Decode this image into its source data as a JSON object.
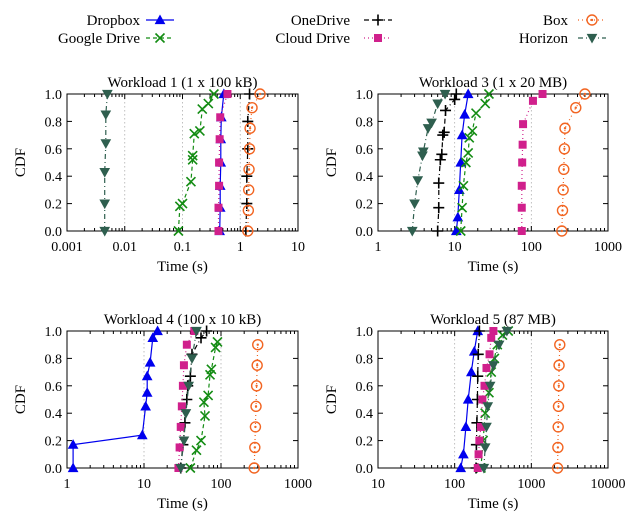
{
  "legend": [
    {
      "name": "Dropbox",
      "color": "#0000ee",
      "marker": "triangle-up",
      "dash": ""
    },
    {
      "name": "Google Drive",
      "color": "#138c13",
      "marker": "x",
      "dash": "4 3"
    },
    {
      "name": "OneDrive",
      "color": "#000000",
      "marker": "plus",
      "dash": "5 3 1 3"
    },
    {
      "name": "Cloud Drive",
      "color": "#d0208c",
      "marker": "square",
      "dash": "1 3"
    },
    {
      "name": "Box",
      "color": "#f26522",
      "marker": "circle",
      "dash": "1 3"
    },
    {
      "name": "Horizon",
      "color": "#2f5f4f",
      "marker": "triangle-down",
      "dash": "5 3 1 3"
    }
  ],
  "chart_data": [
    {
      "type": "line",
      "title": "Workload 1 (1 x 100 kB)",
      "xlabel": "Time (s)",
      "ylabel": "CDF",
      "xscale": "log",
      "xlim": [
        0.001,
        10
      ],
      "ylim": [
        0,
        1
      ],
      "xticks": [
        0.001,
        0.01,
        0.1,
        1,
        10
      ],
      "xtick_labels": [
        "0.001",
        "0.01",
        "0.1",
        "1",
        "10"
      ],
      "yticks": [
        0,
        0.2,
        0.4,
        0.6,
        0.8,
        1.0
      ],
      "ytick_labels": [
        "0.0",
        "0.2",
        "0.4",
        "0.6",
        "0.8",
        "1.0"
      ],
      "grid": true,
      "series": [
        {
          "name": "Dropbox",
          "points": [
            [
              0.44,
              0
            ],
            [
              0.45,
              0.17
            ],
            [
              0.45,
              0.33
            ],
            [
              0.46,
              0.5
            ],
            [
              0.46,
              0.67
            ],
            [
              0.47,
              0.83
            ],
            [
              0.52,
              1.0
            ]
          ]
        },
        {
          "name": "Google Drive",
          "points": [
            [
              0.085,
              0
            ],
            [
              0.09,
              0.18
            ],
            [
              0.1,
              0.2
            ],
            [
              0.14,
              0.36
            ],
            [
              0.15,
              0.52
            ],
            [
              0.15,
              0.55
            ],
            [
              0.16,
              0.71
            ],
            [
              0.2,
              0.73
            ],
            [
              0.22,
              0.89
            ],
            [
              0.28,
              0.93
            ],
            [
              0.35,
              1.0
            ]
          ]
        },
        {
          "name": "OneDrive",
          "points": [
            [
              1.25,
              0
            ],
            [
              1.3,
              0.2
            ],
            [
              1.3,
              0.4
            ],
            [
              1.35,
              0.6
            ],
            [
              1.35,
              0.8
            ],
            [
              1.45,
              1.0
            ]
          ]
        },
        {
          "name": "Cloud Drive",
          "points": [
            [
              0.42,
              0
            ],
            [
              0.42,
              0.17
            ],
            [
              0.43,
              0.33
            ],
            [
              0.43,
              0.5
            ],
            [
              0.44,
              0.67
            ],
            [
              0.45,
              0.83
            ],
            [
              0.6,
              1.0
            ]
          ]
        },
        {
          "name": "Box",
          "points": [
            [
              1.35,
              0
            ],
            [
              1.38,
              0.15
            ],
            [
              1.4,
              0.3
            ],
            [
              1.42,
              0.45
            ],
            [
              1.45,
              0.6
            ],
            [
              1.48,
              0.75
            ],
            [
              1.6,
              0.9
            ],
            [
              2.2,
              1.0
            ]
          ]
        },
        {
          "name": "Horizon",
          "points": [
            [
              0.0045,
              0
            ],
            [
              0.0045,
              0.2
            ],
            [
              0.0045,
              0.43
            ],
            [
              0.0047,
              0.64
            ],
            [
              0.0047,
              0.85
            ],
            [
              0.005,
              1.0
            ]
          ]
        }
      ]
    },
    {
      "type": "line",
      "title": "Workload 3 (1 x 20 MB)",
      "xlabel": "Time (s)",
      "ylabel": "CDF",
      "xscale": "log",
      "xlim": [
        1,
        1000
      ],
      "ylim": [
        0,
        1
      ],
      "xticks": [
        1,
        10,
        100,
        1000
      ],
      "xtick_labels": [
        "1",
        "10",
        "100",
        "1000"
      ],
      "yticks": [
        0,
        0.2,
        0.4,
        0.6,
        0.8,
        1.0
      ],
      "ytick_labels": [
        "0.0",
        "0.2",
        "0.4",
        "0.6",
        "0.8",
        "1.0"
      ],
      "grid": true,
      "series": [
        {
          "name": "Dropbox",
          "points": [
            [
              10.5,
              0
            ],
            [
              11,
              0.1
            ],
            [
              11.5,
              0.3
            ],
            [
              12,
              0.5
            ],
            [
              12.5,
              0.7
            ],
            [
              13.5,
              0.85
            ],
            [
              15,
              1.0
            ]
          ]
        },
        {
          "name": "Google Drive",
          "points": [
            [
              12,
              0
            ],
            [
              12.5,
              0.17
            ],
            [
              13,
              0.33
            ],
            [
              14,
              0.5
            ],
            [
              15,
              0.57
            ],
            [
              15.5,
              0.68
            ],
            [
              17,
              0.73
            ],
            [
              19,
              0.86
            ],
            [
              25,
              0.93
            ],
            [
              28,
              1.0
            ]
          ]
        },
        {
          "name": "OneDrive",
          "points": [
            [
              6,
              0
            ],
            [
              6.2,
              0.17
            ],
            [
              6.2,
              0.35
            ],
            [
              6.5,
              0.52
            ],
            [
              6.8,
              0.56
            ],
            [
              7,
              0.7
            ],
            [
              7.3,
              0.72
            ],
            [
              7.6,
              0.88
            ],
            [
              10,
              0.96
            ],
            [
              10.5,
              1.0
            ]
          ]
        },
        {
          "name": "Cloud Drive",
          "points": [
            [
              75,
              0
            ],
            [
              75,
              0.17
            ],
            [
              75,
              0.33
            ],
            [
              76,
              0.5
            ],
            [
              77,
              0.63
            ],
            [
              78,
              0.78
            ],
            [
              105,
              0.95
            ],
            [
              140,
              1.0
            ]
          ]
        },
        {
          "name": "Box",
          "points": [
            [
              250,
              0
            ],
            [
              255,
              0.15
            ],
            [
              260,
              0.3
            ],
            [
              265,
              0.45
            ],
            [
              270,
              0.6
            ],
            [
              275,
              0.75
            ],
            [
              380,
              0.9
            ],
            [
              500,
              1.0
            ]
          ]
        },
        {
          "name": "Horizon",
          "points": [
            [
              2.8,
              0
            ],
            [
              3,
              0.2
            ],
            [
              3.3,
              0.37
            ],
            [
              3.8,
              0.55
            ],
            [
              3.9,
              0.58
            ],
            [
              4.5,
              0.75
            ],
            [
              5,
              0.79
            ],
            [
              6,
              0.93
            ],
            [
              7.5,
              1.0
            ]
          ]
        }
      ]
    },
    {
      "type": "line",
      "title": "Workload 4 (100 x 10 kB)",
      "xlabel": "Time (s)",
      "ylabel": "CDF",
      "xscale": "log",
      "xlim": [
        1,
        1000
      ],
      "ylim": [
        0,
        1
      ],
      "xticks": [
        1,
        10,
        100,
        1000
      ],
      "xtick_labels": [
        "1",
        "10",
        "100",
        "1000"
      ],
      "yticks": [
        0,
        0.2,
        0.4,
        0.6,
        0.8,
        1.0
      ],
      "ytick_labels": [
        "0.0",
        "0.2",
        "0.4",
        "0.6",
        "0.8",
        "1.0"
      ],
      "grid": true,
      "series": [
        {
          "name": "Dropbox",
          "points": [
            [
              1.2,
              0
            ],
            [
              1.2,
              0.17
            ],
            [
              9.5,
              0.24
            ],
            [
              10.5,
              0.45
            ],
            [
              11,
              0.55
            ],
            [
              11,
              0.67
            ],
            [
              12,
              0.77
            ],
            [
              13,
              0.95
            ],
            [
              15,
              1.0
            ]
          ]
        },
        {
          "name": "Google Drive",
          "points": [
            [
              40,
              0
            ],
            [
              48,
              0.13
            ],
            [
              55,
              0.2
            ],
            [
              62,
              0.38
            ],
            [
              60,
              0.48
            ],
            [
              68,
              0.53
            ],
            [
              72,
              0.68
            ],
            [
              75,
              0.72
            ],
            [
              85,
              0.88
            ],
            [
              90,
              0.92
            ]
          ]
        },
        {
          "name": "OneDrive",
          "points": [
            [
              30,
              0
            ],
            [
              32,
              0.17
            ],
            [
              34,
              0.33
            ],
            [
              36,
              0.5
            ],
            [
              37,
              0.6
            ],
            [
              40,
              0.67
            ],
            [
              42,
              0.83
            ],
            [
              55,
              0.95
            ],
            [
              65,
              1.0
            ]
          ]
        },
        {
          "name": "Cloud Drive",
          "points": [
            [
              28,
              0
            ],
            [
              29,
              0.15
            ],
            [
              30,
              0.3
            ],
            [
              31,
              0.45
            ],
            [
              32,
              0.6
            ],
            [
              33,
              0.75
            ],
            [
              36,
              0.9
            ],
            [
              45,
              1.0
            ]
          ]
        },
        {
          "name": "Box",
          "points": [
            [
              270,
              0
            ],
            [
              275,
              0.15
            ],
            [
              280,
              0.3
            ],
            [
              285,
              0.45
            ],
            [
              290,
              0.6
            ],
            [
              295,
              0.75
            ],
            [
              300,
              0.9
            ]
          ]
        },
        {
          "name": "Horizon",
          "points": [
            [
              30,
              0
            ],
            [
              33,
              0.2
            ],
            [
              35,
              0.4
            ],
            [
              38,
              0.6
            ],
            [
              42,
              0.8
            ],
            [
              48,
              1.0
            ]
          ]
        }
      ]
    },
    {
      "type": "line",
      "title": "Workload 5 (87 MB)",
      "xlabel": "Time (s)",
      "ylabel": "CDF",
      "xscale": "log",
      "xlim": [
        10,
        10000
      ],
      "ylim": [
        0,
        1
      ],
      "xticks": [
        10,
        100,
        1000,
        10000
      ],
      "xtick_labels": [
        "10",
        "100",
        "1000",
        "10000"
      ],
      "yticks": [
        0,
        0.2,
        0.4,
        0.6,
        0.8,
        1.0
      ],
      "ytick_labels": [
        "0.0",
        "0.2",
        "0.4",
        "0.6",
        "0.8",
        "1.0"
      ],
      "grid": true,
      "series": [
        {
          "name": "Dropbox",
          "points": [
            [
              120,
              0
            ],
            [
              130,
              0.1
            ],
            [
              140,
              0.3
            ],
            [
              150,
              0.5
            ],
            [
              165,
              0.7
            ],
            [
              180,
              0.85
            ],
            [
              200,
              1.0
            ]
          ]
        },
        {
          "name": "Google Drive",
          "points": [
            [
              220,
              0
            ],
            [
              235,
              0.2
            ],
            [
              250,
              0.4
            ],
            [
              280,
              0.55
            ],
            [
              300,
              0.7
            ],
            [
              330,
              0.8
            ],
            [
              360,
              0.9
            ],
            [
              420,
              0.97
            ],
            [
              500,
              1.0
            ]
          ]
        },
        {
          "name": "OneDrive",
          "points": [
            [
              190,
              0
            ],
            [
              192,
              0.17
            ],
            [
              195,
              0.33
            ],
            [
              198,
              0.5
            ],
            [
              200,
              0.67
            ],
            [
              203,
              0.83
            ],
            [
              210,
              1.0
            ]
          ]
        },
        {
          "name": "Cloud Drive",
          "points": [
            [
              200,
              0
            ],
            [
              205,
              0.1
            ],
            [
              210,
              0.2
            ],
            [
              220,
              0.3
            ],
            [
              230,
              0.5
            ],
            [
              245,
              0.6
            ],
            [
              260,
              0.73
            ],
            [
              285,
              0.83
            ],
            [
              300,
              0.95
            ],
            [
              320,
              1.0
            ]
          ]
        },
        {
          "name": "Box",
          "points": [
            [
              2200,
              0
            ],
            [
              2220,
              0.15
            ],
            [
              2240,
              0.3
            ],
            [
              2260,
              0.45
            ],
            [
              2280,
              0.6
            ],
            [
              2300,
              0.75
            ],
            [
              2350,
              0.9
            ]
          ]
        },
        {
          "name": "Horizon",
          "points": [
            [
              240,
              0
            ],
            [
              250,
              0.15
            ],
            [
              260,
              0.3
            ],
            [
              270,
              0.45
            ],
            [
              290,
              0.6
            ],
            [
              320,
              0.75
            ],
            [
              380,
              0.9
            ],
            [
              480,
              1.0
            ]
          ]
        }
      ]
    }
  ]
}
